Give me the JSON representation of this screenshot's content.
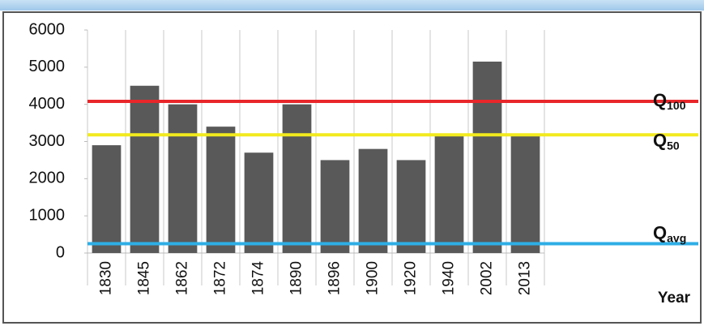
{
  "chart_data": {
    "type": "bar",
    "categories": [
      "1830",
      "1845",
      "1862",
      "1872",
      "1874",
      "1890",
      "1896",
      "1900",
      "1920",
      "1940",
      "2002",
      "2013"
    ],
    "values": [
      2900,
      4500,
      4000,
      3400,
      2700,
      4000,
      2500,
      2800,
      2500,
      3150,
      5150,
      3150
    ],
    "color": "#595959",
    "ylim": [
      0,
      6000
    ],
    "yticks": [
      0,
      1000,
      2000,
      3000,
      4000,
      5000,
      6000
    ],
    "x_label": "Year",
    "reference_lines": [
      {
        "label": "Q",
        "subscript": "100",
        "value": 4080,
        "color": "#e8262a"
      },
      {
        "label": "Q",
        "subscript": "50",
        "value": 3180,
        "color": "#f2ea1e"
      },
      {
        "label": "Q",
        "subscript": "avg",
        "value": 250,
        "color": "#2eaee6"
      }
    ]
  }
}
